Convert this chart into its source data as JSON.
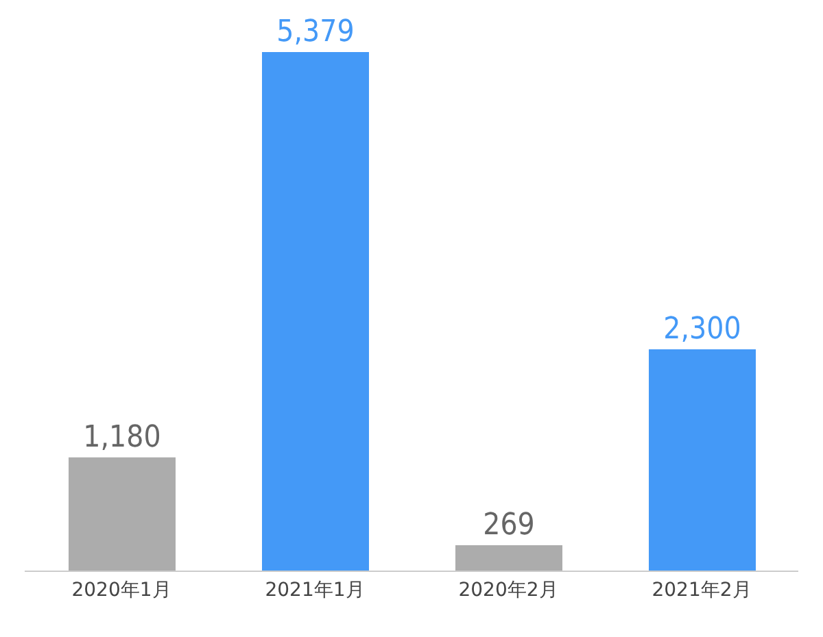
{
  "chart_data": {
    "type": "bar",
    "categories": [
      "2020年1月",
      "2021年1月",
      "2020年2月",
      "2021年2月"
    ],
    "values": [
      1180,
      5379,
      269,
      2300
    ],
    "colors": [
      "#acacac",
      "#4499f7",
      "#acacac",
      "#4499f7"
    ],
    "value_labels": [
      "1,180",
      "5,379",
      "269",
      "2,300"
    ],
    "grid": false,
    "legend": false
  }
}
